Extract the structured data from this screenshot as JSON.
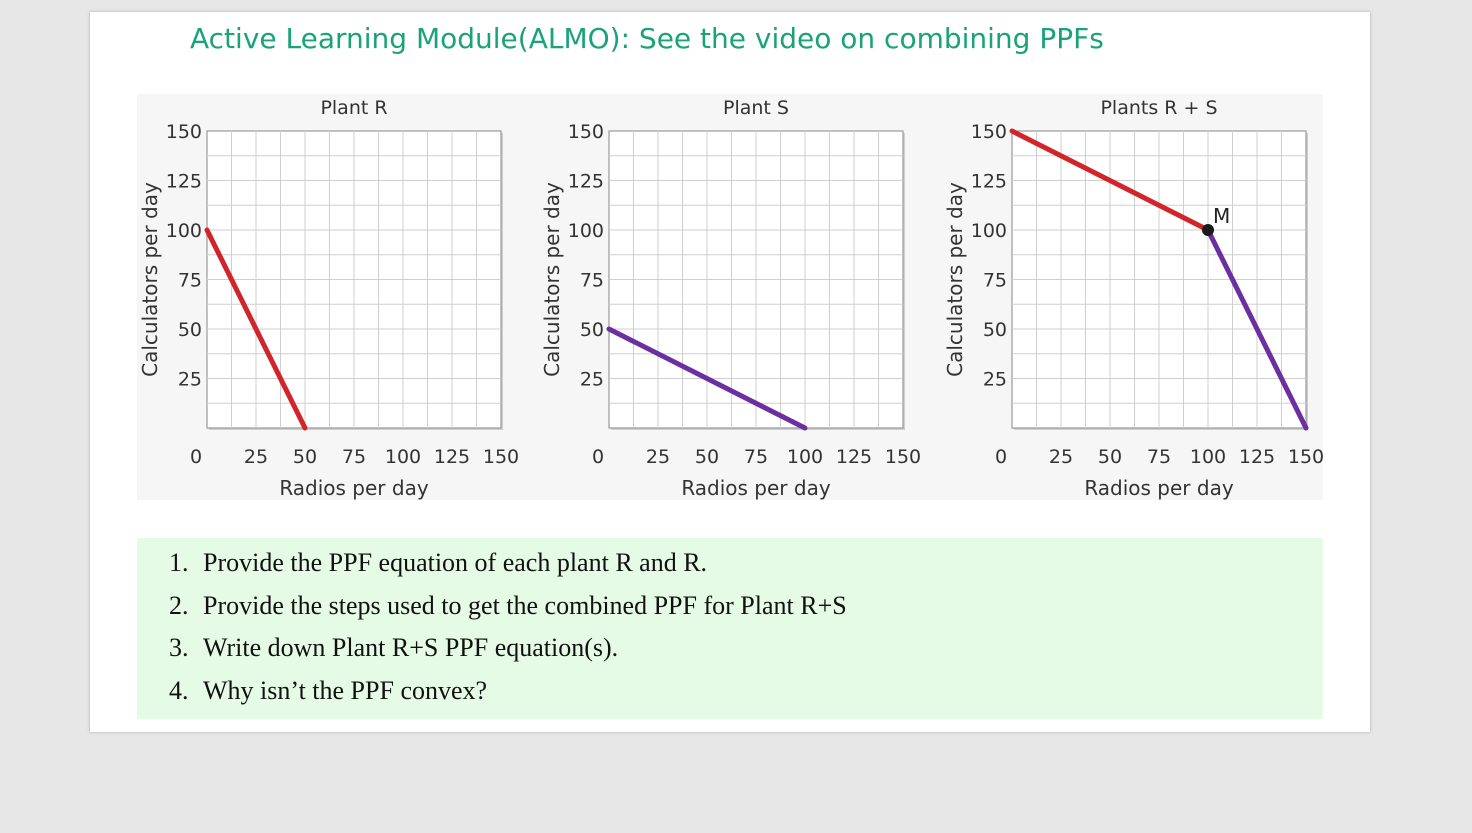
{
  "slide": {
    "title": "Active Learning Module(ALMO): See the video on combining PPFs"
  },
  "chart_data": [
    {
      "type": "line",
      "title": "Plant R",
      "xlabel": "Radios per day",
      "ylabel": "Calculators per day",
      "xlim": [
        0,
        150
      ],
      "ylim": [
        0,
        150
      ],
      "xticks": [
        0,
        25,
        50,
        75,
        100,
        125,
        150
      ],
      "yticks": [
        0,
        25,
        50,
        75,
        100,
        125,
        150
      ],
      "grid": true,
      "series": [
        {
          "color": "#d0252b",
          "points": [
            [
              0,
              100
            ],
            [
              50,
              0
            ]
          ]
        }
      ],
      "annotations": []
    },
    {
      "type": "line",
      "title": "Plant S",
      "xlabel": "Radios per day",
      "ylabel": "Calculators per day",
      "xlim": [
        0,
        150
      ],
      "ylim": [
        0,
        150
      ],
      "xticks": [
        0,
        25,
        50,
        75,
        100,
        125,
        150
      ],
      "yticks": [
        0,
        25,
        50,
        75,
        100,
        125,
        150
      ],
      "grid": true,
      "series": [
        {
          "color": "#6b2fa0",
          "points": [
            [
              0,
              50
            ],
            [
              100,
              0
            ]
          ]
        }
      ],
      "annotations": []
    },
    {
      "type": "line",
      "title": "Plants R + S",
      "xlabel": "Radios per day",
      "ylabel": "Calculators per day",
      "xlim": [
        0,
        150
      ],
      "ylim": [
        0,
        150
      ],
      "xticks": [
        0,
        25,
        50,
        75,
        100,
        125,
        150
      ],
      "yticks": [
        0,
        25,
        50,
        75,
        100,
        125,
        150
      ],
      "grid": true,
      "series": [
        {
          "color": "#d0252b",
          "points": [
            [
              0,
              150
            ],
            [
              100,
              100
            ]
          ]
        },
        {
          "color": "#6b2fa0",
          "points": [
            [
              100,
              100
            ],
            [
              150,
              0
            ]
          ]
        }
      ],
      "annotations": [
        {
          "label": "M",
          "x": 100,
          "y": 100
        }
      ]
    }
  ],
  "questions": [
    "Provide the PPF equation of each plant R and R.",
    "Provide the steps used to get the combined PPF for Plant R+S",
    "Write down Plant R+S PPF equation(s).",
    "Why isn’t the PPF convex?"
  ]
}
